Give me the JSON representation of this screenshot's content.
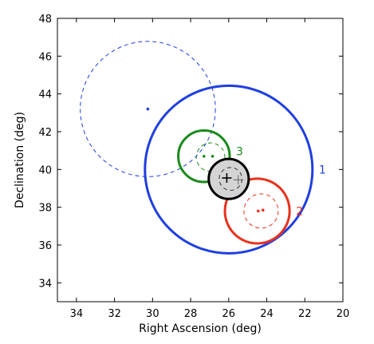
{
  "chart_data": {
    "type": "scatter",
    "xlabel": "Right Ascension (deg)",
    "ylabel": "Declination (deg)",
    "xlim": [
      35,
      20
    ],
    "ylim": [
      33,
      48
    ],
    "x_inverted": true,
    "xticks": [
      34,
      32,
      30,
      28,
      26,
      24,
      22,
      20
    ],
    "yticks": [
      34,
      36,
      38,
      40,
      42,
      44,
      46,
      48
    ],
    "grid": false,
    "circles": [
      {
        "label": "1",
        "color": "#1f3fe0",
        "style": "solid",
        "ra": 26.0,
        "dec": 40.0,
        "radius": 4.4
      },
      {
        "label": "",
        "color": "#1f3fe0",
        "style": "dashed",
        "ra": 30.25,
        "dec": 43.2,
        "radius": 3.55
      },
      {
        "label": "2",
        "color": "#e8321e",
        "style": "solid",
        "ra": 24.5,
        "dec": 37.8,
        "radius": 1.7
      },
      {
        "label": "",
        "color": "#e8321e",
        "style": "dashed",
        "ra": 24.3,
        "dec": 37.8,
        "radius": 0.9
      },
      {
        "label": "3",
        "color": "#1a8a1a",
        "style": "solid",
        "ra": 27.3,
        "dec": 40.7,
        "radius": 1.35
      },
      {
        "label": "",
        "color": "#1a8a1a",
        "style": "dashed",
        "ra": 26.95,
        "dec": 40.65,
        "radius": 0.75
      },
      {
        "label": "",
        "color": "#000000",
        "style": "solid",
        "ra": 26.0,
        "dec": 39.5,
        "radius": 1.05,
        "fill": "#d4d4d4"
      },
      {
        "label": "",
        "color": "#333333",
        "style": "dashed",
        "ra": 25.9,
        "dec": 39.5,
        "radius": 0.6
      }
    ],
    "points": [
      {
        "ra": 30.25,
        "dec": 43.2,
        "color": "#1f3fe0"
      },
      {
        "ra": 24.45,
        "dec": 37.8,
        "color": "#e8321e"
      },
      {
        "ra": 24.2,
        "dec": 37.85,
        "color": "#e8321e"
      },
      {
        "ra": 27.3,
        "dec": 40.7,
        "color": "#1a8a1a"
      },
      {
        "ra": 26.85,
        "dec": 40.7,
        "color": "#1a8a1a"
      }
    ],
    "crosses": [
      {
        "ra": 26.1,
        "dec": 39.55,
        "color": "#000000"
      },
      {
        "ra": 25.5,
        "dec": 39.45,
        "color": "#666666"
      }
    ]
  }
}
